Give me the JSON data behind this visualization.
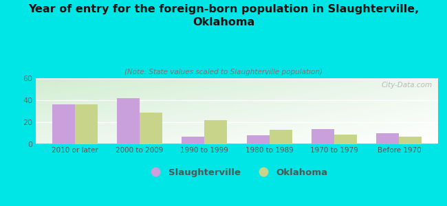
{
  "title": "Year of entry for the foreign-born population in Slaughterville,\nOklahoma",
  "subtitle": "(Note: State values scaled to Slaughterville population)",
  "categories": [
    "2010 or later",
    "2000 to 2009",
    "1990 to 1999",
    "1980 to 1989",
    "1970 to 1979",
    "Before 1970"
  ],
  "slaughterville": [
    36,
    42,
    7,
    8,
    14,
    10
  ],
  "oklahoma": [
    36,
    29,
    22,
    13,
    9,
    7
  ],
  "slaughterville_color": "#c9a0dc",
  "oklahoma_color": "#c8d48a",
  "background_color": "#00e5e5",
  "plot_bg_top_left": "#d4ecd4",
  "plot_bg_bottom_right": "#f8fff8",
  "ylim": [
    0,
    60
  ],
  "yticks": [
    0,
    20,
    40,
    60
  ],
  "bar_width": 0.35,
  "legend_labels": [
    "Slaughterville",
    "Oklahoma"
  ],
  "watermark": "City-Data.com"
}
